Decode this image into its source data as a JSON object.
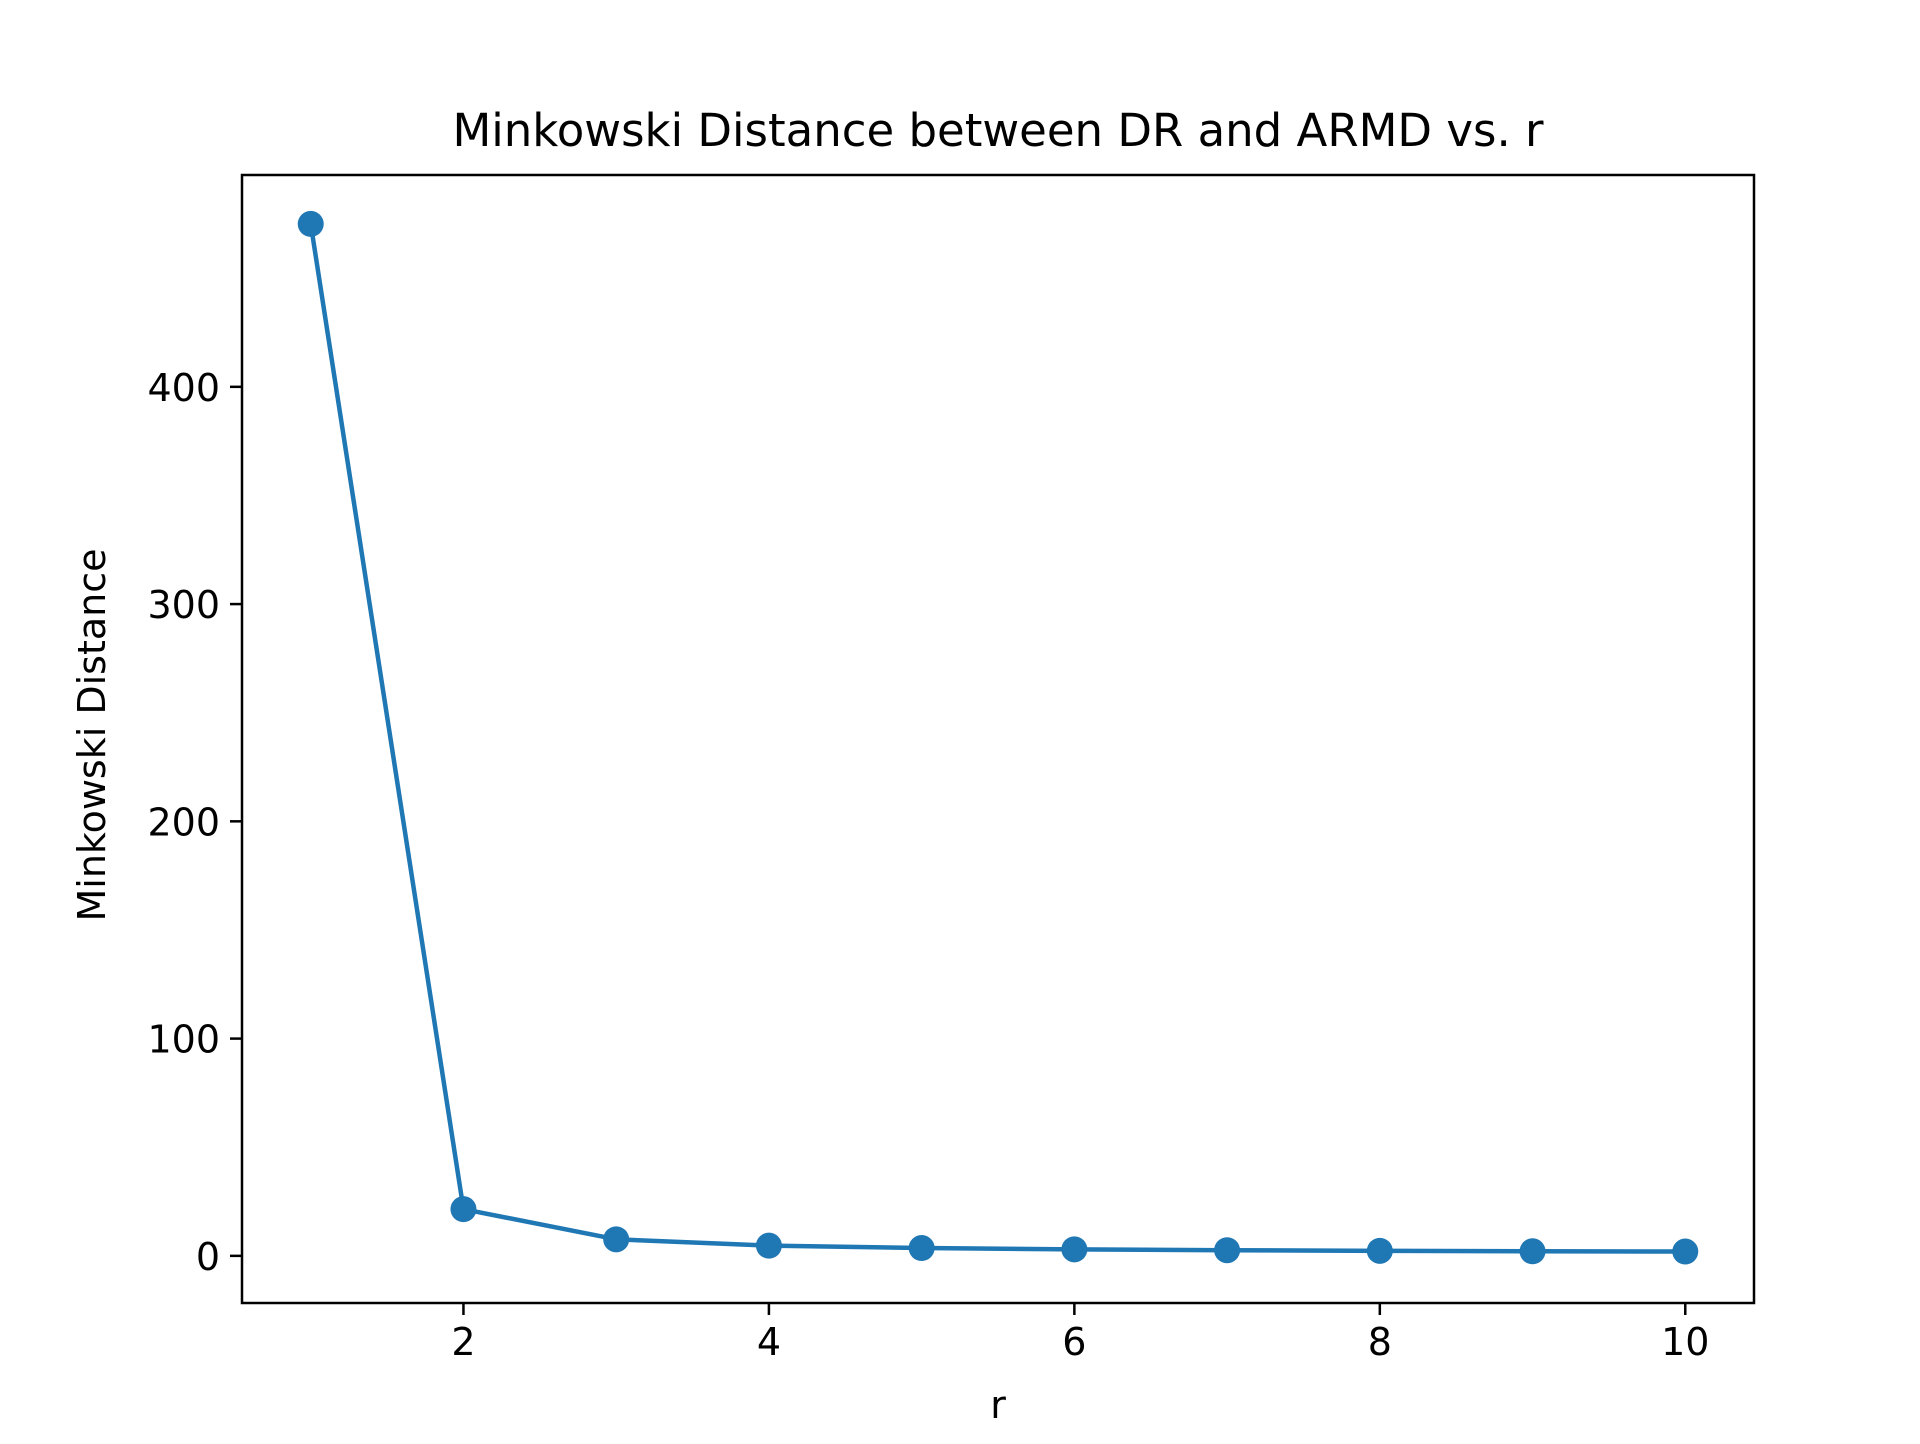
{
  "chart_data": {
    "type": "line",
    "title": "Minkowski Distance between DR and ARMD vs. r",
    "xlabel": "r",
    "ylabel": "Minkowski Distance",
    "x": [
      1,
      2,
      3,
      4,
      5,
      6,
      7,
      8,
      9,
      10
    ],
    "series": [
      {
        "values": [
          475.0,
          21.5,
          7.6,
          4.7,
          3.6,
          3.0,
          2.6,
          2.3,
          2.1,
          2.0
        ],
        "color": "#1f77b4",
        "marker": "circle"
      }
    ],
    "xlim": [
      0.55,
      10.45
    ],
    "ylim": [
      -21.7,
      497.5
    ],
    "xticks": [
      2,
      4,
      6,
      8,
      10
    ],
    "yticks": [
      0,
      100,
      200,
      300,
      400
    ],
    "xtick_labels": [
      "2",
      "4",
      "6",
      "8",
      "10"
    ],
    "ytick_labels": [
      "0",
      "100",
      "200",
      "300",
      "400"
    ],
    "grid": false,
    "legend": "none"
  }
}
